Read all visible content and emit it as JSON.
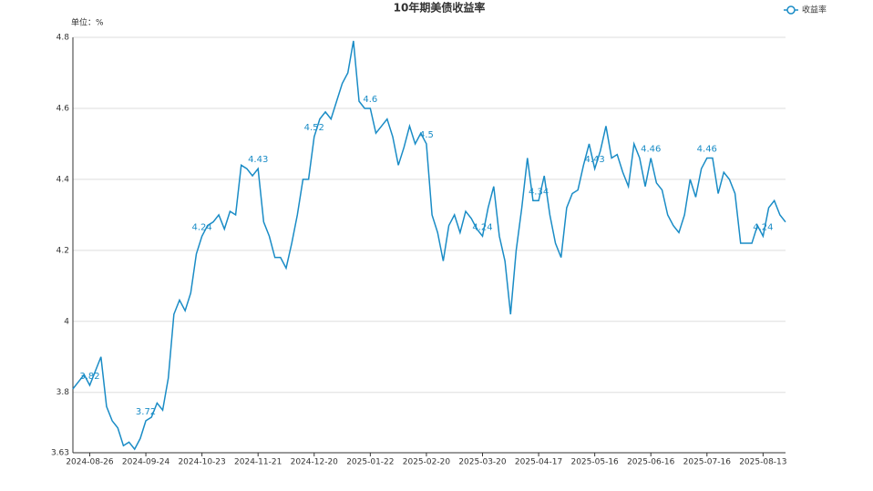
{
  "chart_data": {
    "type": "line",
    "title": "10年期美债收益率",
    "y_axis_label": "单位：%",
    "categories": [
      null,
      null,
      null,
      "2024-08-26",
      null,
      null,
      null,
      null,
      null,
      null,
      null,
      null,
      null,
      "2024-09-24",
      null,
      null,
      null,
      null,
      null,
      null,
      null,
      null,
      null,
      "2024-10-23",
      null,
      null,
      null,
      null,
      null,
      null,
      null,
      null,
      null,
      "2024-11-21",
      null,
      null,
      null,
      null,
      null,
      null,
      null,
      null,
      null,
      "2024-12-20",
      null,
      null,
      null,
      null,
      null,
      null,
      null,
      null,
      null,
      "2025-01-22",
      null,
      null,
      null,
      null,
      null,
      null,
      null,
      null,
      null,
      "2025-02-20",
      null,
      null,
      null,
      null,
      null,
      null,
      null,
      null,
      null,
      "2025-03-20",
      null,
      null,
      null,
      null,
      null,
      null,
      null,
      null,
      null,
      "2025-04-17",
      null,
      null,
      null,
      null,
      null,
      null,
      null,
      null,
      null,
      "2025-05-16",
      null,
      null,
      null,
      null,
      null,
      null,
      null,
      null,
      null,
      "2025-06-16",
      null,
      null,
      null,
      null,
      null,
      null,
      null,
      null,
      null,
      "2025-07-16",
      null,
      null,
      null,
      null,
      null,
      null,
      null,
      null,
      null,
      "2025-08-13",
      null,
      null,
      null,
      null
    ],
    "series": [
      {
        "name": "收益率",
        "color": "#1a8cc6",
        "values": [
          3.81,
          3.83,
          3.85,
          3.82,
          3.86,
          3.9,
          3.76,
          3.72,
          3.7,
          3.65,
          3.66,
          3.64,
          3.67,
          3.72,
          3.73,
          3.77,
          3.75,
          3.84,
          4.02,
          4.06,
          4.03,
          4.08,
          4.19,
          4.24,
          4.27,
          4.28,
          4.3,
          4.26,
          4.31,
          4.3,
          4.44,
          4.43,
          4.41,
          4.43,
          4.28,
          4.24,
          4.18,
          4.18,
          4.15,
          4.22,
          4.3,
          4.4,
          4.4,
          4.52,
          4.57,
          4.59,
          4.57,
          4.62,
          4.67,
          4.7,
          4.79,
          4.62,
          4.6,
          4.6,
          4.53,
          4.55,
          4.57,
          4.52,
          4.44,
          4.49,
          4.55,
          4.5,
          4.53,
          4.5,
          4.3,
          4.25,
          4.17,
          4.27,
          4.3,
          4.25,
          4.31,
          4.29,
          4.26,
          4.24,
          4.32,
          4.38,
          4.24,
          4.17,
          4.02,
          4.2,
          4.32,
          4.46,
          4.34,
          4.34,
          4.41,
          4.3,
          4.22,
          4.18,
          4.32,
          4.36,
          4.37,
          4.44,
          4.5,
          4.43,
          4.48,
          4.55,
          4.46,
          4.47,
          4.42,
          4.38,
          4.5,
          4.46,
          4.38,
          4.46,
          4.39,
          4.37,
          4.3,
          4.27,
          4.25,
          4.3,
          4.4,
          4.35,
          4.43,
          4.46,
          4.46,
          4.36,
          4.42,
          4.4,
          4.36,
          4.22,
          4.22,
          4.22,
          4.27,
          4.24,
          4.32,
          4.34,
          4.3,
          4.28
        ],
        "value_labels": [
          null,
          null,
          null,
          "3.82",
          null,
          null,
          null,
          null,
          null,
          null,
          null,
          null,
          null,
          "3.72",
          null,
          null,
          null,
          null,
          null,
          null,
          null,
          null,
          null,
          "4.24",
          null,
          null,
          null,
          null,
          null,
          null,
          null,
          null,
          null,
          "4.43",
          null,
          null,
          null,
          null,
          null,
          null,
          null,
          null,
          null,
          "4.52",
          null,
          null,
          null,
          null,
          null,
          null,
          null,
          null,
          null,
          "4.6",
          null,
          null,
          null,
          null,
          null,
          null,
          null,
          null,
          null,
          "4.5",
          null,
          null,
          null,
          null,
          null,
          null,
          null,
          null,
          null,
          "4.24",
          null,
          null,
          null,
          null,
          null,
          null,
          null,
          null,
          null,
          "4.34",
          null,
          null,
          null,
          null,
          null,
          null,
          null,
          null,
          null,
          "4.43",
          null,
          null,
          null,
          null,
          null,
          null,
          null,
          null,
          null,
          "4.46",
          null,
          null,
          null,
          null,
          null,
          null,
          null,
          null,
          null,
          "4.46",
          null,
          null,
          null,
          null,
          null,
          null,
          null,
          null,
          null,
          "4.24",
          null,
          null,
          null,
          null
        ]
      }
    ],
    "ylim": [
      3.63,
      4.8
    ],
    "yticks": [
      3.63,
      3.8,
      4,
      4.2,
      4.4,
      4.6,
      4.8
    ],
    "grid": true,
    "legend": "top-right"
  }
}
